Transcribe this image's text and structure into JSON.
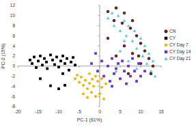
{
  "chart_data": {
    "type": "scatter",
    "x_label": "PC-1 (61%)",
    "y_label": "PC-2 (15%)",
    "xlim": [
      -20,
      15
    ],
    "xticks": [
      -20,
      -15,
      -10,
      -5,
      0,
      5,
      10,
      15
    ],
    "ylim": [
      -8,
      12
    ],
    "yticks": [
      -8,
      -6,
      -4,
      -2,
      0,
      2,
      4,
      6,
      8,
      10,
      12
    ],
    "grid": false,
    "legend": "right",
    "series": [
      {
        "name": "CN",
        "color": "#8b1a1a",
        "marker": "circle",
        "x": [
          2,
          3.5,
          4,
          5.5,
          6,
          7.5,
          8,
          9,
          10,
          11,
          12,
          13,
          6,
          8,
          10,
          4,
          7,
          12.5,
          2,
          9.5
        ],
        "values": [
          10.8,
          9.0,
          11.5,
          8.5,
          10.5,
          7.5,
          9.0,
          6.0,
          4.5,
          3.0,
          1.5,
          0.0,
          4.0,
          2.5,
          0.5,
          2.0,
          -1.5,
          -1.5,
          5.5,
          2.0
        ]
      },
      {
        "name": "CY",
        "color": "#000000",
        "marker": "square",
        "x": [
          -17,
          -16.5,
          -16,
          -15.5,
          -15,
          -14.5,
          -14,
          -13.5,
          -13,
          -12.8,
          -12,
          -11.5,
          -11,
          -10.5,
          -10,
          -9.5,
          -9,
          -8.5,
          -8,
          -7.5,
          -7,
          -6.5,
          -6,
          -12,
          -10,
          -8.5,
          -14.5,
          -9
        ],
        "values": [
          1.2,
          0.5,
          1.8,
          -0.3,
          1.0,
          2.0,
          0.2,
          1.5,
          0.8,
          -0.5,
          2.2,
          1.2,
          0.3,
          1.8,
          -0.2,
          1.0,
          2.0,
          0.5,
          1.5,
          -0.8,
          0.8,
          1.7,
          0.2,
          -3.9,
          -4.5,
          -3.8,
          -2.5,
          -1.5
        ]
      },
      {
        "name": "CY Day 7",
        "color": "#f0b400",
        "marker": "diamond",
        "x": [
          -6,
          -5.5,
          -5,
          -4.5,
          -4,
          -3.5,
          -3,
          -2.5,
          -2,
          -1.8,
          -1.5,
          -1,
          -0.5,
          0,
          0.5,
          1,
          -3,
          -4,
          1.5,
          -2.5,
          -1,
          0.5
        ],
        "values": [
          -2.5,
          -1.8,
          -3.2,
          -2.2,
          -3.8,
          -2.8,
          -4.5,
          -3.4,
          -5.2,
          -2.6,
          -4.0,
          -6.0,
          -3.0,
          -5.5,
          -4.2,
          -6.5,
          -6.2,
          -5.5,
          -3.5,
          -1.5,
          -2.0,
          -2.5
        ]
      },
      {
        "name": "CY Day 14",
        "color": "#6a35c9",
        "marker": "square",
        "x": [
          -2,
          -1,
          -0.5,
          0.5,
          1,
          2,
          2.5,
          3,
          3.5,
          4,
          4.5,
          5,
          5.5,
          6,
          6.5,
          7,
          7.5,
          8,
          8.5,
          9,
          9.5,
          10,
          11,
          3
        ],
        "values": [
          0.5,
          2.5,
          -1.0,
          1.0,
          -2.0,
          0.0,
          -3.0,
          1.5,
          -1.5,
          -0.5,
          0.5,
          -2.5,
          1.0,
          -1.0,
          -3.5,
          0.0,
          -2.0,
          1.5,
          -1.0,
          -3.0,
          0.5,
          -2.0,
          -1.0,
          -4.0
        ]
      },
      {
        "name": "CY Day 21",
        "color": "#5bc8e8",
        "marker": "triangle",
        "x": [
          2,
          3,
          3.5,
          4.5,
          5,
          6,
          6.5,
          7,
          8,
          8.5,
          9,
          10,
          10.5,
          11,
          11.5,
          12,
          12.5,
          13,
          13.5,
          5,
          7,
          9,
          4,
          6
        ],
        "values": [
          9.5,
          10.5,
          8.0,
          10.0,
          7.0,
          9.0,
          6.0,
          8.0,
          5.0,
          7.0,
          3.5,
          5.5,
          2.0,
          4.0,
          0.5,
          2.5,
          -1.0,
          1.0,
          -2.0,
          3.0,
          1.0,
          -0.5,
          -1.0,
          5.0
        ]
      }
    ]
  }
}
